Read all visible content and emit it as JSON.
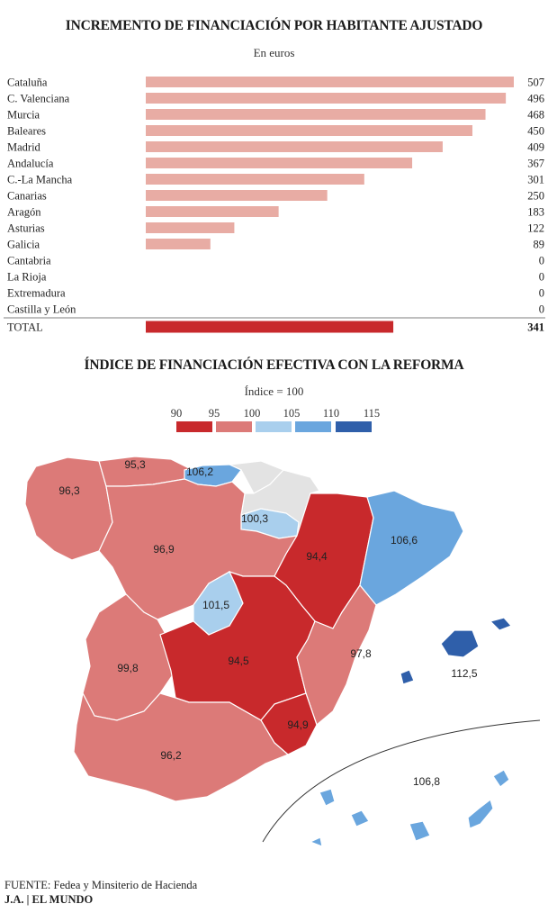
{
  "chart_data": [
    {
      "type": "bar",
      "orientation": "horizontal",
      "title": "INCREMENTO DE FINANCIACIÓN POR HABITANTE AJUSTADO",
      "subtitle": "En euros",
      "categories": [
        "Cataluña",
        "C. Valenciana",
        "Murcia",
        "Baleares",
        "Madrid",
        "Andalucía",
        "C.-La Mancha",
        "Canarias",
        "Aragón",
        "Asturias",
        "Galicia",
        "Cantabria",
        "La Rioja",
        "Extremadura",
        "Castilla y León"
      ],
      "values": [
        507,
        496,
        468,
        450,
        409,
        367,
        301,
        250,
        183,
        122,
        89,
        0,
        0,
        0,
        0
      ],
      "total_label": "TOTAL",
      "total_value": 341,
      "xlim": [
        0,
        507
      ],
      "bar_color": "#e8aca4",
      "total_color": "#c8292c"
    },
    {
      "type": "choropleth",
      "title": "ÍNDICE DE FINANCIACIÓN EFECTIVA CON LA REFORMA",
      "subtitle": "Índice = 100",
      "legend": {
        "breaks": [
          "90",
          "95",
          "100",
          "105",
          "110",
          "115"
        ],
        "colors": [
          "#c8292c",
          "#dc7a78",
          "#a9cfed",
          "#6aa6de",
          "#2f5faa"
        ]
      },
      "regions": [
        {
          "name": "Galicia",
          "value": "96,3",
          "color": "#dc7a78"
        },
        {
          "name": "Asturias",
          "value": "95,3",
          "color": "#dc7a78"
        },
        {
          "name": "Cantabria",
          "value": "106,2",
          "color": "#6aa6de"
        },
        {
          "name": "La Rioja",
          "value": "100,3",
          "color": "#a9cfed"
        },
        {
          "name": "Castilla y León",
          "value": "96,9",
          "color": "#dc7a78"
        },
        {
          "name": "Aragón",
          "value": "94,4",
          "color": "#c8292c"
        },
        {
          "name": "Cataluña",
          "value": "106,6",
          "color": "#6aa6de"
        },
        {
          "name": "Madrid",
          "value": "101,5",
          "color": "#a9cfed"
        },
        {
          "name": "Extremadura",
          "value": "99,8",
          "color": "#dc7a78"
        },
        {
          "name": "Castilla-La Mancha",
          "value": "94,5",
          "color": "#c8292c"
        },
        {
          "name": "C. Valenciana",
          "value": "97,8",
          "color": "#dc7a78"
        },
        {
          "name": "Baleares",
          "value": "112,5",
          "color": "#2f5faa"
        },
        {
          "name": "Murcia",
          "value": "94,9",
          "color": "#c8292c"
        },
        {
          "name": "Andalucía",
          "value": "96,2",
          "color": "#dc7a78"
        },
        {
          "name": "Canarias",
          "value": "106,8",
          "color": "#6aa6de"
        }
      ],
      "no_data_color": "#e3e3e3"
    }
  ],
  "footer": {
    "source_label": "FUENTE:",
    "source_text": " Fedea y Minsiterio de Hacienda",
    "brand_a": "J.A.",
    "brand_sep": " | ",
    "brand_b": "EL MUNDO"
  }
}
